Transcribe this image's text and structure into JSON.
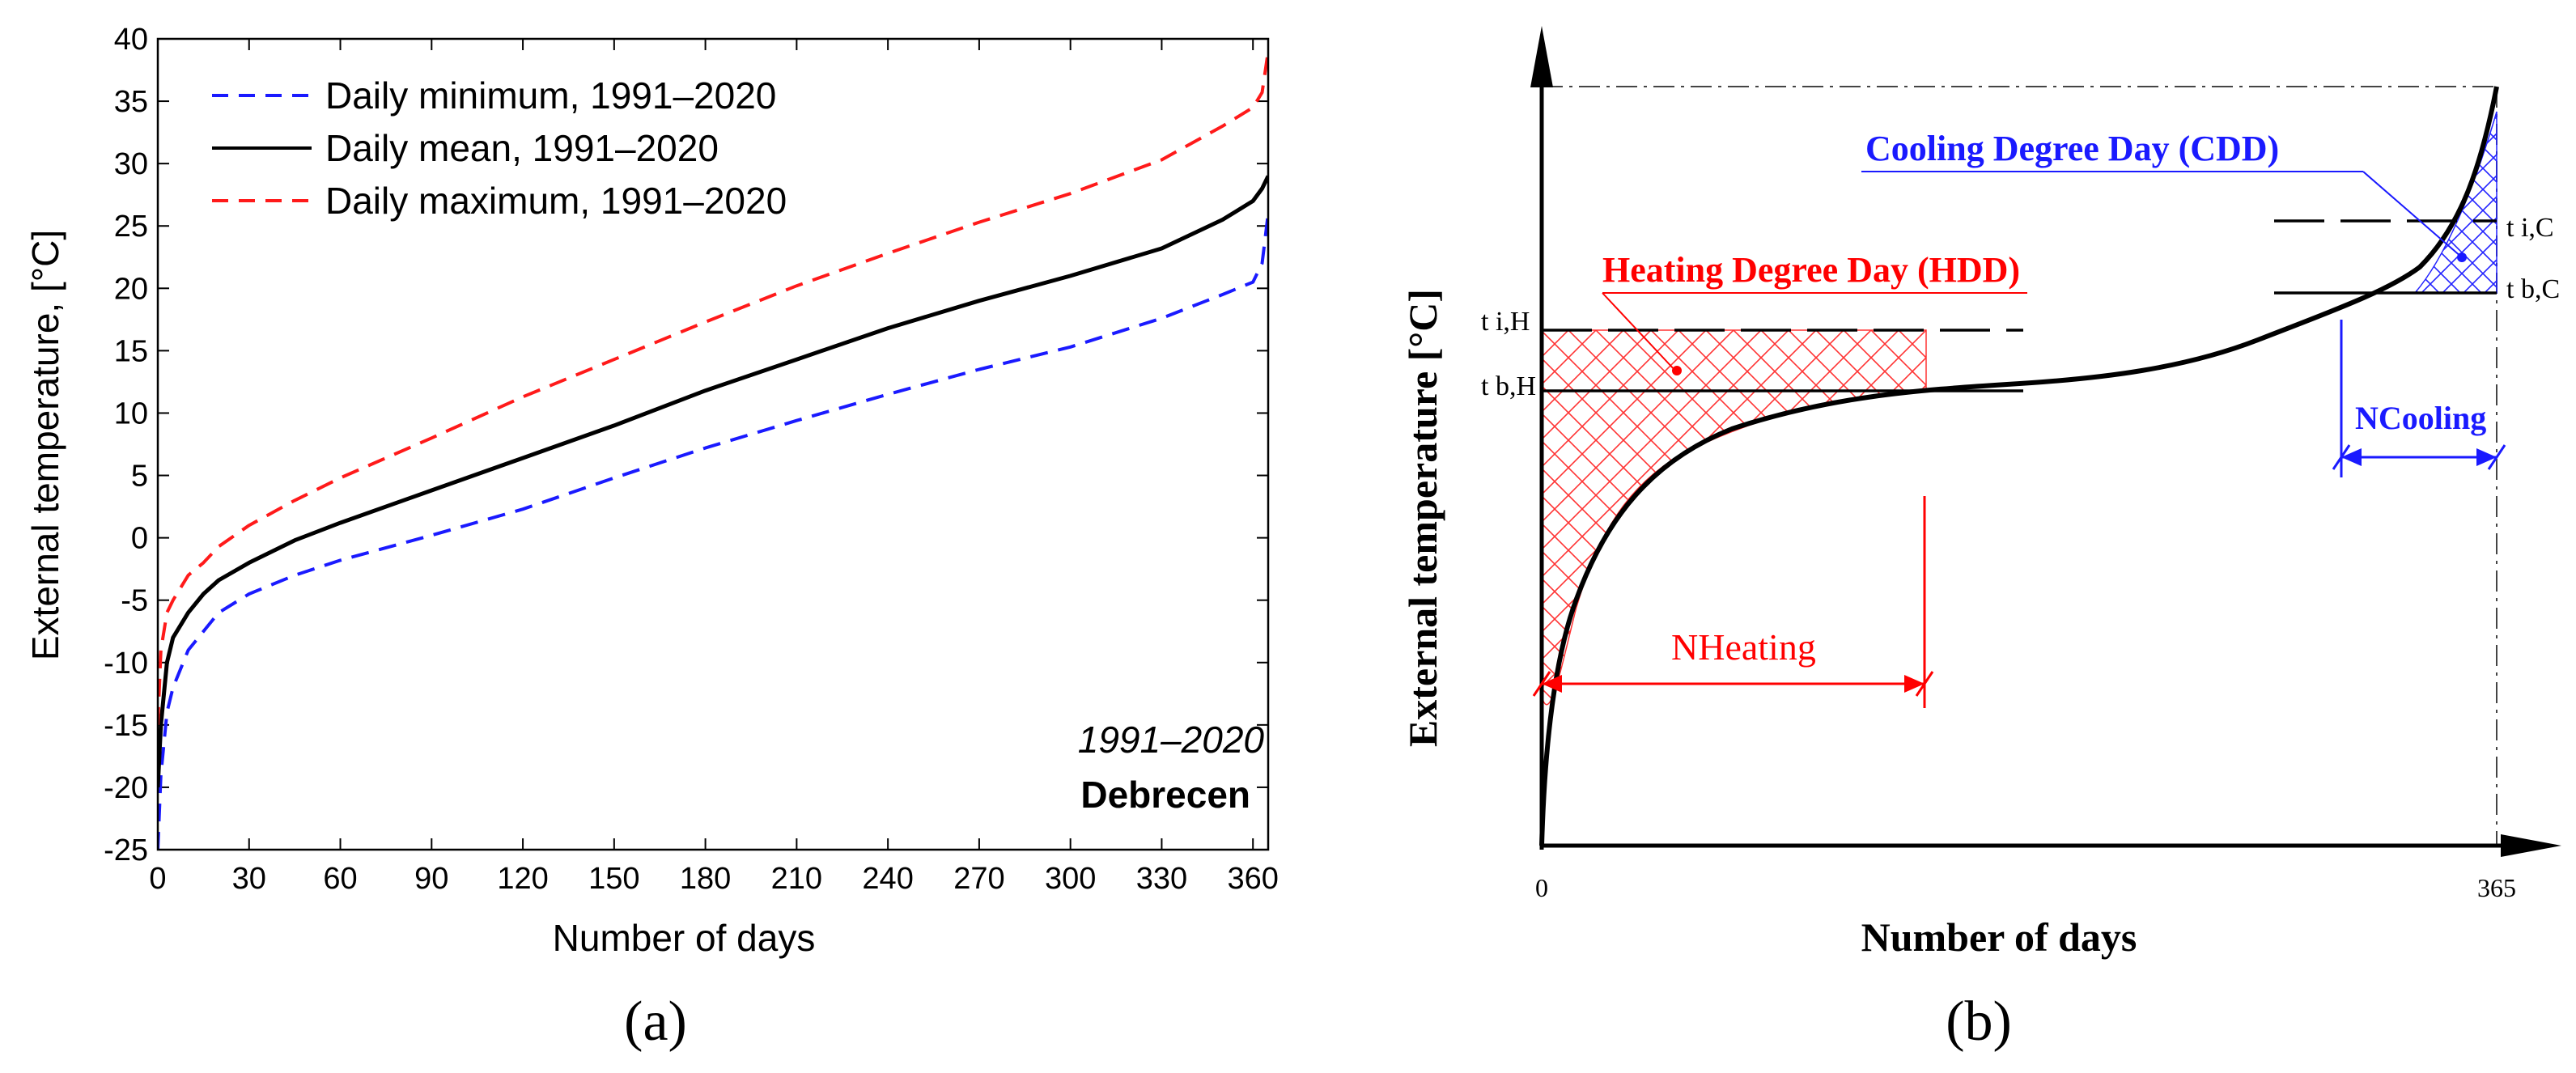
{
  "chart_data": [
    {
      "type": "line",
      "panel": "(a)",
      "xlabel": "Number of days",
      "ylabel": "External temperature, [°C]",
      "xlim": [
        0,
        365
      ],
      "ylim": [
        -25,
        40
      ],
      "xticks": [
        0,
        30,
        60,
        90,
        120,
        150,
        180,
        210,
        240,
        270,
        300,
        330,
        360
      ],
      "yticks": [
        -25,
        -20,
        -15,
        -10,
        -5,
        0,
        5,
        10,
        15,
        20,
        25,
        30,
        35,
        40
      ],
      "legend_position": "top-left",
      "annotations": [
        "1991–2020",
        "Debrecen"
      ],
      "x": [
        0,
        1,
        3,
        5,
        10,
        15,
        20,
        30,
        45,
        60,
        90,
        120,
        150,
        180,
        210,
        240,
        270,
        300,
        330,
        350,
        360,
        363,
        365
      ],
      "series": [
        {
          "name": "Daily minimum, 1991–2020",
          "color": "#1a1aff",
          "dash": "dashed",
          "values": [
            -25,
            -19,
            -14,
            -12,
            -9,
            -7.5,
            -6,
            -4.5,
            -3,
            -1.8,
            0.2,
            2.3,
            4.8,
            7.2,
            9.4,
            11.5,
            13.5,
            15.3,
            17.6,
            19.5,
            20.5,
            22,
            26
          ]
        },
        {
          "name": "Daily mean, 1991–2020",
          "color": "#000000",
          "dash": "solid",
          "values": [
            -20,
            -15,
            -10,
            -8,
            -6,
            -4.5,
            -3.4,
            -2,
            -0.2,
            1.2,
            3.8,
            6.4,
            9,
            11.8,
            14.3,
            16.8,
            19,
            21,
            23.2,
            25.5,
            27,
            28,
            29
          ]
        },
        {
          "name": "Daily maximum, 1991–2020",
          "color": "#ff1a1a",
          "dash": "dashed",
          "values": [
            -15,
            -9,
            -6,
            -5,
            -3,
            -2,
            -0.7,
            1,
            3,
            4.8,
            8,
            11.3,
            14.3,
            17.3,
            20.2,
            22.8,
            25.3,
            27.6,
            30.3,
            33,
            34.5,
            35.7,
            39
          ]
        }
      ]
    },
    {
      "type": "diagram",
      "panel": "(b)",
      "xlabel": "Number of days",
      "ylabel": "External temperature [°C]",
      "x_tick_labels": [
        "0",
        "365"
      ],
      "hdd_label": "Heating Degree Day (HDD)",
      "cdd_label": "Cooling Degree Day (CDD)",
      "level_labels": {
        "ti_h": "t i,H",
        "tb_h": "t b,H",
        "ti_c": "t i,C",
        "tb_c": "t b,C"
      },
      "n_heating": "NHeating",
      "n_cooling": "NCooling",
      "colors": {
        "heating": "#ff0000",
        "cooling": "#1a1aff"
      }
    }
  ],
  "panel_labels": [
    "(a)",
    "(b)"
  ]
}
